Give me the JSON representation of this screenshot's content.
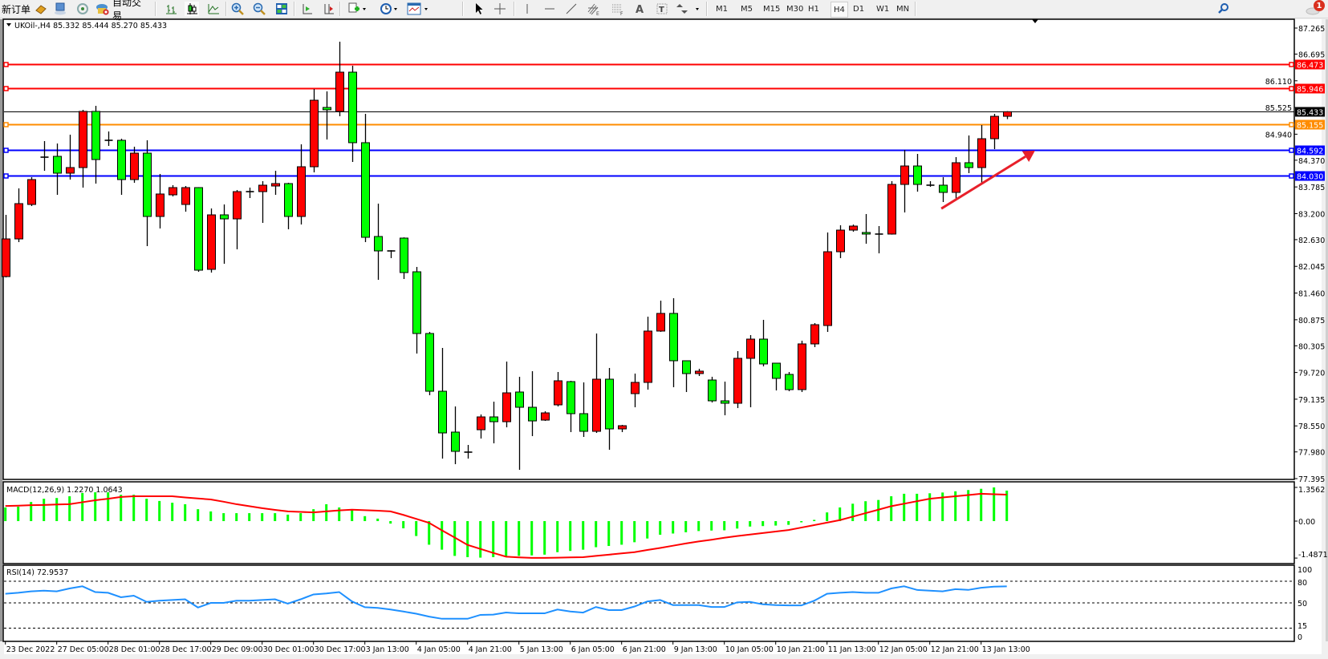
{
  "toolbar": {
    "new_order": "新订单",
    "auto_trade": "自动交易",
    "periods": [
      "M1",
      "M5",
      "M15",
      "M30",
      "H1",
      "H4",
      "D1",
      "W1",
      "MN"
    ],
    "active_period": "H4",
    "notification_count": "1",
    "icons": [
      "book-icon",
      "terminal-icon",
      "signal-icon",
      "auto-trade-icon",
      "bar-chart-icon",
      "candlestick-icon",
      "line-chart-icon",
      "zoom-in-icon",
      "zoom-out-icon",
      "tile-windows-icon",
      "auto-scroll-icon",
      "chart-shift-icon",
      "new-chart-icon",
      "clock-icon",
      "template-icon",
      "cursor-icon",
      "crosshair-icon",
      "vertical-line-icon",
      "horizontal-line-icon",
      "trendline-icon",
      "fibo-channel-icon",
      "fibo-retracement-icon",
      "text-icon",
      "text-label-icon",
      "arrows-icon",
      "search-icon",
      "notification-icon"
    ]
  },
  "chart": {
    "symbol": "UKOil-,H4",
    "header_values": "85.332 85.444 85.270 85.433",
    "macd_label": "MACD(12,26,9) 1.2270 1.0643",
    "rsi_label": "RSI(14) 72.9537"
  },
  "chart_data": {
    "type": "candlestick",
    "symbol": "UKOil-",
    "timeframe": "H4",
    "colors": {
      "up": "#ff0000",
      "down": "#00ff00",
      "outline": "#000000",
      "macd_hist": "#00ff00",
      "macd_signal": "#ff0000",
      "rsi": "#1e90ff"
    },
    "ylim": [
      77.395,
      87.265
    ],
    "y_ticks": [
      "87.265",
      "86.695",
      "86.110",
      "85.525",
      "84.940",
      "84.370",
      "83.785",
      "83.200",
      "82.630",
      "82.045",
      "81.460",
      "80.875",
      "80.305",
      "79.720",
      "79.135",
      "78.550",
      "77.980",
      "77.395"
    ],
    "x_labels": [
      "23 Dec 2022",
      "27 Dec 05:00",
      "28 Dec 01:00",
      "28 Dec 17:00",
      "29 Dec 09:00",
      "30 Dec 01:00",
      "30 Dec 17:00",
      "3 Jan 13:00",
      "4 Jan 05:00",
      "4 Jan 21:00",
      "5 Jan 13:00",
      "6 Jan 05:00",
      "6 Jan 21:00",
      "9 Jan 13:00",
      "10 Jan 05:00",
      "10 Jan 21:00",
      "11 Jan 13:00",
      "12 Jan 05:00",
      "12 Jan 21:00",
      "13 Jan 13:00"
    ],
    "ohlc_fields": [
      "open",
      "high",
      "low",
      "close"
    ],
    "candles": [
      [
        81.821,
        83.173,
        81.803,
        82.646
      ],
      [
        82.646,
        83.753,
        82.576,
        83.419
      ],
      [
        83.401,
        83.998,
        83.366,
        83.946
      ],
      [
        84.437,
        84.789,
        84.139,
        84.437
      ],
      [
        84.455,
        84.736,
        83.612,
        84.086
      ],
      [
        84.086,
        84.929,
        83.946,
        84.209
      ],
      [
        84.209,
        85.474,
        83.77,
        85.439
      ],
      [
        85.439,
        85.561,
        83.858,
        84.385
      ],
      [
        84.806,
        85.0,
        84.683,
        84.806
      ],
      [
        84.806,
        84.841,
        83.612,
        83.946
      ],
      [
        83.946,
        84.666,
        83.876,
        84.525
      ],
      [
        84.525,
        84.806,
        82.488,
        83.138
      ],
      [
        83.138,
        84.069,
        82.875,
        83.63
      ],
      [
        83.612,
        83.823,
        83.577,
        83.77
      ],
      [
        83.401,
        83.805,
        83.243,
        83.77
      ],
      [
        83.77,
        83.78,
        81.926,
        81.961
      ],
      [
        81.979,
        83.313,
        81.909,
        83.173
      ],
      [
        83.173,
        83.401,
        82.102,
        83.085
      ],
      [
        83.085,
        83.717,
        82.418,
        83.682
      ],
      [
        83.682,
        83.77,
        83.542,
        83.682
      ],
      [
        83.682,
        83.911,
        82.997,
        83.823
      ],
      [
        83.805,
        84.139,
        83.612,
        83.858
      ],
      [
        83.858,
        83.876,
        82.857,
        83.138
      ],
      [
        83.138,
        84.718,
        82.962,
        84.227
      ],
      [
        84.227,
        85.93,
        84.104,
        85.684
      ],
      [
        85.526,
        85.878,
        84.824,
        85.474
      ],
      [
        85.439,
        86.966,
        85.333,
        86.299
      ],
      [
        86.299,
        86.44,
        84.332,
        84.754
      ],
      [
        84.754,
        85.386,
        82.576,
        82.681
      ],
      [
        82.699,
        83.419,
        81.75,
        82.383
      ],
      [
        82.383,
        82.4,
        82.225,
        82.383
      ],
      [
        82.664,
        82.68,
        81.768,
        81.909
      ],
      [
        81.926,
        82.032,
        80.135,
        80.574
      ],
      [
        80.574,
        80.609,
        79.222,
        79.309
      ],
      [
        79.309,
        80.258,
        77.834,
        78.396
      ],
      [
        78.414,
        78.976,
        77.711,
        77.992
      ],
      [
        77.975,
        78.133,
        77.834,
        77.975
      ],
      [
        78.466,
        78.8,
        78.273,
        78.747
      ],
      [
        78.747,
        79.081,
        78.168,
        78.642
      ],
      [
        78.642,
        79.959,
        78.519,
        79.274
      ],
      [
        79.292,
        79.625,
        77.588,
        78.958
      ],
      [
        78.958,
        79.748,
        78.326,
        78.659
      ],
      [
        78.677,
        78.87,
        78.659,
        78.835
      ],
      [
        79.011,
        79.731,
        78.976,
        79.538
      ],
      [
        79.52,
        79.538,
        78.414,
        78.818
      ],
      [
        78.818,
        79.503,
        78.308,
        78.431
      ],
      [
        78.431,
        80.574,
        78.396,
        79.573
      ],
      [
        79.573,
        79.819,
        78.027,
        78.484
      ],
      [
        78.484,
        78.572,
        78.414,
        78.554
      ],
      [
        79.257,
        79.696,
        78.958,
        79.503
      ],
      [
        79.503,
        80.943,
        79.345,
        80.627
      ],
      [
        80.627,
        81.294,
        80.61,
        81.014
      ],
      [
        81.014,
        81.347,
        79.397,
        79.977
      ],
      [
        79.977,
        79.98,
        79.292,
        79.696
      ],
      [
        79.696,
        79.801,
        79.643,
        79.749
      ],
      [
        79.555,
        79.626,
        79.063,
        79.099
      ],
      [
        79.099,
        79.52,
        78.783,
        79.046
      ],
      [
        79.046,
        80.188,
        78.941,
        80.03
      ],
      [
        80.03,
        80.539,
        78.958,
        80.451
      ],
      [
        80.451,
        80.873,
        79.854,
        79.907
      ],
      [
        79.924,
        79.93,
        79.327,
        79.591
      ],
      [
        79.678,
        79.731,
        79.31,
        79.345
      ],
      [
        79.345,
        80.416,
        79.292,
        80.346
      ],
      [
        80.346,
        80.802,
        80.275,
        80.767
      ],
      [
        80.749,
        82.787,
        80.609,
        82.365
      ],
      [
        82.365,
        82.945,
        82.225,
        82.839
      ],
      [
        82.839,
        82.96,
        82.804,
        82.927
      ],
      [
        82.787,
        83.191,
        82.541,
        82.752
      ],
      [
        82.752,
        82.927,
        82.33,
        82.752
      ],
      [
        82.752,
        83.911,
        82.74,
        83.84
      ],
      [
        83.84,
        84.596,
        83.226,
        84.244
      ],
      [
        84.244,
        84.508,
        83.682,
        83.84
      ],
      [
        83.823,
        83.911,
        83.788,
        83.823
      ],
      [
        83.823,
        83.998,
        83.454,
        83.665
      ],
      [
        83.665,
        84.438,
        83.507,
        84.315
      ],
      [
        84.315,
        84.912,
        84.086,
        84.209
      ],
      [
        84.209,
        85.14,
        83.876,
        84.841
      ],
      [
        84.841,
        85.386,
        84.613,
        85.332
      ],
      [
        85.332,
        85.444,
        85.27,
        85.433
      ]
    ],
    "horizontal_lines": [
      {
        "price": 86.473,
        "label": "86.473",
        "color": "#ff0000"
      },
      {
        "price": 85.946,
        "label": "85.946",
        "color": "#ff0000"
      },
      {
        "price": 85.433,
        "label": "85.433",
        "color": "#000000",
        "current": true
      },
      {
        "price": 85.155,
        "label": "85.155",
        "color": "#ff8c00"
      },
      {
        "price": 84.592,
        "label": "84.592",
        "color": "#0000ff"
      },
      {
        "price": 84.03,
        "label": "84.030",
        "color": "#0000ff"
      }
    ],
    "arrow": {
      "from": {
        "bar": 72.9,
        "price": 83.31
      },
      "to": {
        "bar": 80.2,
        "price": 84.58
      },
      "color": "#e8202a"
    },
    "macd": {
      "params": "12,26,9",
      "ylim": [
        -1.4871,
        1.3562
      ],
      "y_ticks": [
        "1.3562",
        "0.00",
        "-1.4871"
      ],
      "histogram": [
        0.55,
        0.58,
        0.77,
        0.9,
        0.93,
        1.0,
        1.13,
        1.16,
        1.16,
        1.06,
        1.06,
        0.9,
        0.81,
        0.74,
        0.68,
        0.48,
        0.39,
        0.32,
        0.32,
        0.32,
        0.32,
        0.32,
        0.26,
        0.32,
        0.48,
        0.68,
        0.55,
        0.45,
        0.2,
        0.1,
        -0.1,
        -0.29,
        -0.6,
        -0.95,
        -1.15,
        -1.4,
        -1.45,
        -1.47,
        -1.45,
        -1.42,
        -1.4,
        -1.38,
        -1.35,
        -1.25,
        -1.2,
        -1.15,
        -1.05,
        -1.0,
        -0.95,
        -0.85,
        -0.7,
        -0.55,
        -0.5,
        -0.45,
        -0.4,
        -0.38,
        -0.37,
        -0.3,
        -0.22,
        -0.2,
        -0.18,
        -0.15,
        -0.05,
        0.05,
        0.35,
        0.55,
        0.7,
        0.8,
        0.85,
        1.0,
        1.1,
        1.1,
        1.12,
        1.15,
        1.2,
        1.25,
        1.3,
        1.3562,
        1.227
      ],
      "signal": [
        0.61,
        0.62,
        0.64,
        0.65,
        0.67,
        0.68,
        0.76,
        0.84,
        0.9,
        0.97,
        1.0,
        1.0,
        1.0,
        1.0,
        0.95,
        0.91,
        0.87,
        0.78,
        0.68,
        0.6,
        0.52,
        0.45,
        0.39,
        0.37,
        0.35,
        0.39,
        0.43,
        0.46,
        0.44,
        0.42,
        0.39,
        0.25,
        0.09,
        -0.07,
        -0.37,
        -0.66,
        -0.96,
        -1.12,
        -1.28,
        -1.43,
        -1.46,
        -1.48,
        -1.48,
        -1.47,
        -1.46,
        -1.45,
        -1.4,
        -1.35,
        -1.3,
        -1.25,
        -1.16,
        -1.08,
        -0.99,
        -0.9,
        -0.82,
        -0.75,
        -0.67,
        -0.6,
        -0.54,
        -0.48,
        -0.42,
        -0.36,
        -0.26,
        -0.16,
        -0.06,
        0.04,
        0.18,
        0.32,
        0.46,
        0.6,
        0.7,
        0.8,
        0.9,
        0.95,
        1.0,
        1.05,
        1.1,
        1.08,
        1.0643
      ]
    },
    "rsi": {
      "period": 14,
      "levels": [
        80,
        50,
        15
      ],
      "y_ticks": [
        "100",
        "80",
        "50",
        "15",
        "0"
      ],
      "values": [
        62.7,
        64,
        66,
        67,
        66,
        70,
        73,
        65,
        64,
        57.8,
        60,
        51.4,
        53,
        54,
        55,
        43.6,
        50,
        50,
        53,
        53,
        54,
        55,
        49,
        55,
        61.7,
        63,
        65,
        52,
        44,
        43,
        40.8,
        38,
        35,
        31,
        28,
        28,
        28,
        33.4,
        33.7,
        36.6,
        35.5,
        35.5,
        35.5,
        40.8,
        38,
        36.6,
        44.3,
        40,
        40,
        45,
        52,
        54,
        47,
        47,
        47,
        44.3,
        44.3,
        50.7,
        51.4,
        48,
        47,
        46.5,
        46.5,
        53,
        62.7,
        64,
        65,
        64,
        64,
        70,
        73,
        68,
        67,
        66,
        69,
        68,
        71,
        72.5,
        72.9537
      ]
    }
  }
}
